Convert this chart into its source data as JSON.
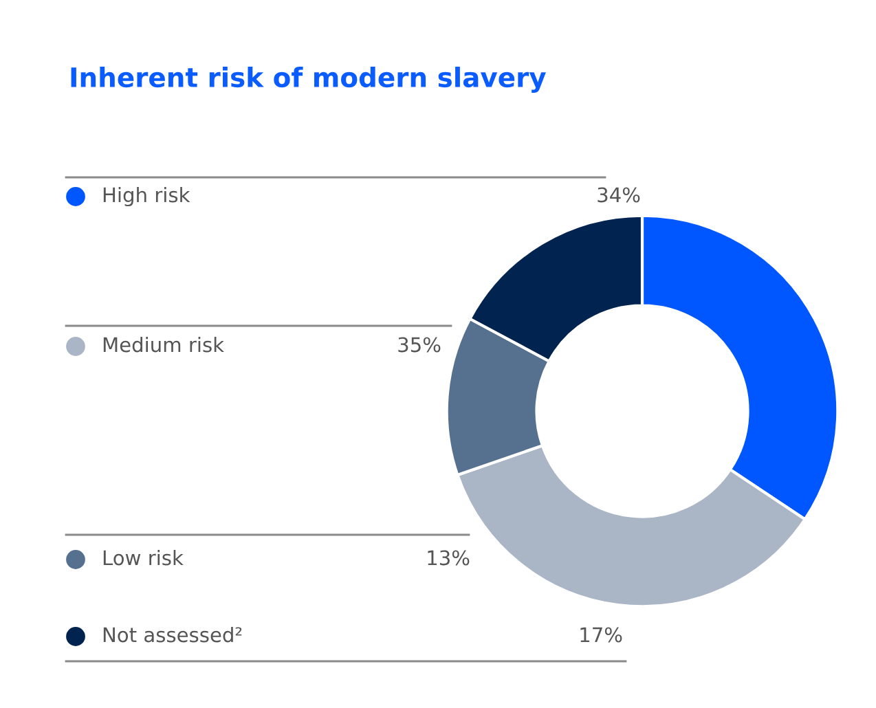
{
  "chart_data": {
    "type": "donut",
    "title": "Inherent risk of modern slavery",
    "categories": [
      "High risk",
      "Medium risk",
      "Low risk",
      "Not assessed²"
    ],
    "values": [
      34,
      35,
      13,
      17
    ],
    "colors": [
      "#0057ff",
      "#aab5c6",
      "#56708f",
      "#00234f"
    ],
    "value_labels": [
      "34%",
      "35%",
      "13%",
      "17%"
    ],
    "legend": "left"
  }
}
